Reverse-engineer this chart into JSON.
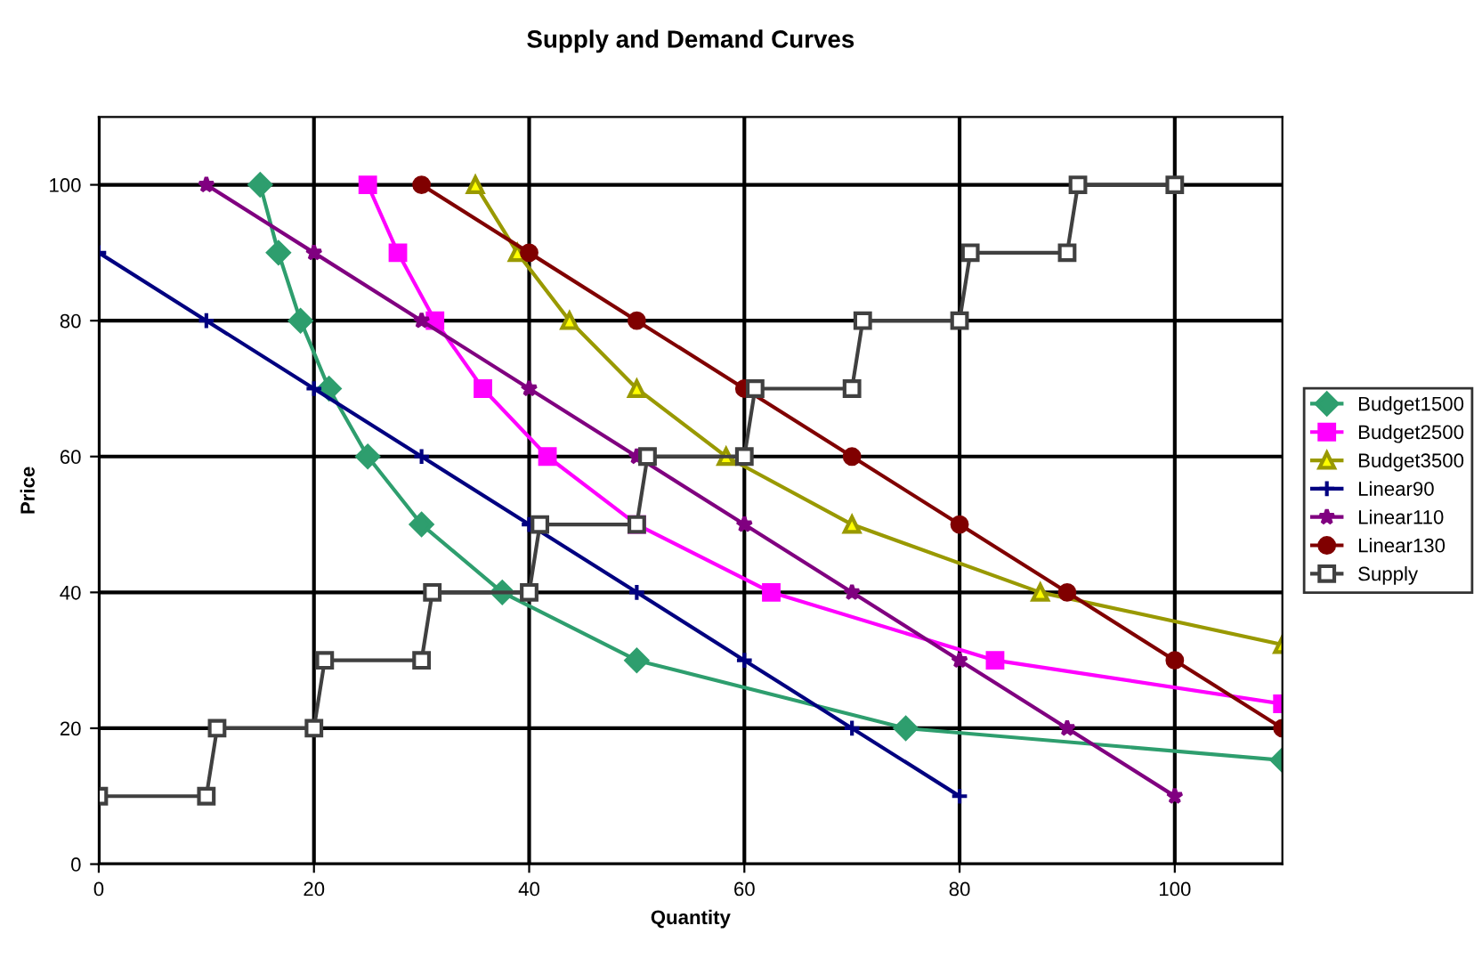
{
  "chart_data": {
    "type": "line",
    "title": "Supply and Demand Curves",
    "xlabel": "Quantity",
    "ylabel": "Price",
    "xlim": [
      0,
      110
    ],
    "ylim": [
      0,
      110
    ],
    "xticks": [
      0,
      20,
      40,
      60,
      80,
      100
    ],
    "yticks": [
      0,
      20,
      40,
      60,
      80,
      100
    ],
    "grid": true,
    "legend": "right",
    "series": [
      {
        "name": "Budget1500",
        "color": "#2e9e6e",
        "marker": "diamond",
        "x": [
          15,
          16.7,
          18.75,
          21.4,
          25,
          30,
          37.5,
          50,
          75,
          110
        ],
        "values": [
          100,
          90,
          80,
          70,
          60,
          50,
          40,
          30,
          20,
          15.3
        ]
      },
      {
        "name": "Budget2500",
        "color": "#ff00ff",
        "marker": "square",
        "x": [
          25,
          27.8,
          31.25,
          35.7,
          41.7,
          50,
          62.5,
          83.3,
          110
        ],
        "values": [
          100,
          90,
          80,
          70,
          60,
          50,
          40,
          30,
          23.6
        ]
      },
      {
        "name": "Budget3500",
        "color": "#999900",
        "marker": "triangle",
        "x": [
          35,
          38.9,
          43.75,
          50,
          58.3,
          70,
          87.5,
          110
        ],
        "values": [
          100,
          90,
          80,
          70,
          60,
          50,
          40,
          32.3
        ]
      },
      {
        "name": "Linear90",
        "color": "#000080",
        "marker": "cross",
        "x": [
          0,
          10,
          20,
          30,
          40,
          50,
          60,
          70,
          80
        ],
        "values": [
          90,
          80,
          70,
          60,
          50,
          40,
          30,
          20,
          10
        ]
      },
      {
        "name": "Linear110",
        "color": "#800080",
        "marker": "star",
        "x": [
          10,
          20,
          30,
          40,
          50,
          60,
          70,
          80,
          90,
          100
        ],
        "values": [
          100,
          90,
          80,
          70,
          60,
          50,
          40,
          30,
          20,
          10
        ]
      },
      {
        "name": "Linear130",
        "color": "#800000",
        "marker": "circle",
        "x": [
          30,
          40,
          50,
          60,
          70,
          80,
          90,
          100,
          110
        ],
        "values": [
          100,
          90,
          80,
          70,
          60,
          50,
          40,
          30,
          20
        ]
      },
      {
        "name": "Supply",
        "color": "#404040",
        "marker": "square",
        "x": [
          0,
          10,
          11,
          20,
          21,
          30,
          31,
          40,
          41,
          50,
          51,
          60,
          61,
          70,
          71,
          80,
          81,
          90,
          91,
          100
        ],
        "values": [
          10,
          10,
          20,
          20,
          30,
          30,
          40,
          40,
          50,
          50,
          60,
          60,
          70,
          70,
          80,
          80,
          90,
          90,
          100,
          100
        ]
      }
    ]
  }
}
